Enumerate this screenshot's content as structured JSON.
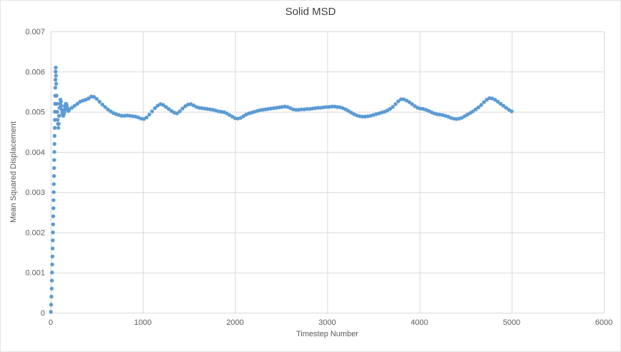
{
  "chart_data": {
    "type": "scatter",
    "title": "Solid MSD",
    "xlabel": "Timestep Number",
    "ylabel": "Mean Squared Displacement",
    "xlim": [
      0,
      6000
    ],
    "ylim": [
      0,
      0.007
    ],
    "x_ticks": [
      0,
      1000,
      2000,
      3000,
      4000,
      5000,
      6000
    ],
    "y_ticks": [
      0,
      0.001,
      0.002,
      0.003,
      0.004,
      0.005,
      0.006,
      0.007
    ],
    "grid": true,
    "legend": false,
    "marker_color": "#5B9BD5",
    "gridline_color": "#D9D9D9",
    "series": [
      {
        "name": "MSD",
        "points": [
          [
            2,
            2e-05
          ],
          [
            5,
            0.0002
          ],
          [
            8,
            0.0004
          ],
          [
            11,
            0.0006
          ],
          [
            13,
            0.0008
          ],
          [
            15,
            0.001
          ],
          [
            17,
            0.0012
          ],
          [
            19,
            0.0014
          ],
          [
            21,
            0.0016
          ],
          [
            23,
            0.0018
          ],
          [
            25,
            0.002
          ],
          [
            27,
            0.0022
          ],
          [
            28,
            0.0024
          ],
          [
            30,
            0.0026
          ],
          [
            31,
            0.0028
          ],
          [
            33,
            0.003
          ],
          [
            34,
            0.0032
          ],
          [
            36,
            0.0034
          ],
          [
            37,
            0.0036
          ],
          [
            38,
            0.0038
          ],
          [
            40,
            0.004
          ],
          [
            41,
            0.0042
          ],
          [
            42,
            0.0044
          ],
          [
            44,
            0.0046
          ],
          [
            45,
            0.0048
          ],
          [
            46,
            0.005
          ],
          [
            48,
            0.0052
          ],
          [
            49,
            0.0054
          ],
          [
            50,
            0.0056
          ],
          [
            52,
            0.0058
          ],
          [
            53,
            0.006
          ],
          [
            55,
            0.0061
          ],
          [
            57,
            0.0059
          ],
          [
            60,
            0.0057
          ],
          [
            63,
            0.0054
          ],
          [
            67,
            0.0052
          ],
          [
            71,
            0.005
          ],
          [
            75,
            0.0048
          ],
          [
            79,
            0.0047
          ],
          [
            83,
            0.0046
          ],
          [
            87,
            0.0047
          ],
          [
            91,
            0.0049
          ],
          [
            96,
            0.0051
          ],
          [
            101,
            0.0052
          ],
          [
            106,
            0.0053
          ],
          [
            111,
            0.00525
          ],
          [
            116,
            0.00515
          ],
          [
            121,
            0.00505
          ],
          [
            126,
            0.00497
          ],
          [
            131,
            0.00492
          ],
          [
            136,
            0.0049
          ],
          [
            141,
            0.00493
          ],
          [
            146,
            0.00498
          ],
          [
            151,
            0.00505
          ],
          [
            156,
            0.00512
          ],
          [
            161,
            0.00517
          ],
          [
            166,
            0.0052
          ],
          [
            171,
            0.00518
          ],
          [
            176,
            0.00513
          ],
          [
            181,
            0.00508
          ],
          [
            186,
            0.00504
          ],
          [
            191,
            0.00502
          ],
          [
            196,
            0.00503
          ],
          [
            200,
            0.00506
          ],
          [
            230,
            0.0051
          ],
          [
            260,
            0.00515
          ],
          [
            290,
            0.0052
          ],
          [
            320,
            0.00525
          ],
          [
            350,
            0.00528
          ],
          [
            380,
            0.0053
          ],
          [
            410,
            0.00533
          ],
          [
            440,
            0.00538
          ],
          [
            470,
            0.00537
          ],
          [
            500,
            0.00532
          ],
          [
            530,
            0.00525
          ],
          [
            560,
            0.00518
          ],
          [
            590,
            0.00512
          ],
          [
            620,
            0.00506
          ],
          [
            650,
            0.00501
          ],
          [
            680,
            0.00497
          ],
          [
            710,
            0.00494
          ],
          [
            740,
            0.00492
          ],
          [
            770,
            0.0049
          ],
          [
            800,
            0.0049
          ],
          [
            830,
            0.00491
          ],
          [
            860,
            0.0049
          ],
          [
            890,
            0.00489
          ],
          [
            920,
            0.00488
          ],
          [
            950,
            0.00486
          ],
          [
            980,
            0.00483
          ],
          [
            1010,
            0.00482
          ],
          [
            1040,
            0.00486
          ],
          [
            1070,
            0.00493
          ],
          [
            1100,
            0.00501
          ],
          [
            1130,
            0.00509
          ],
          [
            1160,
            0.00515
          ],
          [
            1190,
            0.00519
          ],
          [
            1220,
            0.00517
          ],
          [
            1250,
            0.00512
          ],
          [
            1280,
            0.00507
          ],
          [
            1310,
            0.00502
          ],
          [
            1340,
            0.00498
          ],
          [
            1370,
            0.00496
          ],
          [
            1400,
            0.00501
          ],
          [
            1430,
            0.00508
          ],
          [
            1460,
            0.00514
          ],
          [
            1490,
            0.00518
          ],
          [
            1520,
            0.00519
          ],
          [
            1550,
            0.00516
          ],
          [
            1580,
            0.00512
          ],
          [
            1610,
            0.0051
          ],
          [
            1640,
            0.00509
          ],
          [
            1670,
            0.00508
          ],
          [
            1700,
            0.00507
          ],
          [
            1730,
            0.00506
          ],
          [
            1760,
            0.00505
          ],
          [
            1790,
            0.00503
          ],
          [
            1820,
            0.00501
          ],
          [
            1850,
            0.005
          ],
          [
            1880,
            0.00499
          ],
          [
            1910,
            0.00496
          ],
          [
            1940,
            0.00492
          ],
          [
            1970,
            0.00488
          ],
          [
            2000,
            0.00484
          ],
          [
            2030,
            0.00483
          ],
          [
            2060,
            0.00485
          ],
          [
            2090,
            0.00489
          ],
          [
            2120,
            0.00493
          ],
          [
            2150,
            0.00496
          ],
          [
            2180,
            0.00498
          ],
          [
            2210,
            0.005
          ],
          [
            2240,
            0.00502
          ],
          [
            2270,
            0.00504
          ],
          [
            2300,
            0.00505
          ],
          [
            2330,
            0.00506
          ],
          [
            2360,
            0.00507
          ],
          [
            2390,
            0.00508
          ],
          [
            2420,
            0.00509
          ],
          [
            2450,
            0.0051
          ],
          [
            2480,
            0.00511
          ],
          [
            2510,
            0.00512
          ],
          [
            2540,
            0.00513
          ],
          [
            2570,
            0.00512
          ],
          [
            2600,
            0.00509
          ],
          [
            2630,
            0.00506
          ],
          [
            2660,
            0.00505
          ],
          [
            2690,
            0.00505
          ],
          [
            2720,
            0.00506
          ],
          [
            2750,
            0.00506
          ],
          [
            2780,
            0.00507
          ],
          [
            2810,
            0.00507
          ],
          [
            2840,
            0.00508
          ],
          [
            2870,
            0.00509
          ],
          [
            2900,
            0.0051
          ],
          [
            2930,
            0.0051
          ],
          [
            2960,
            0.00511
          ],
          [
            2990,
            0.00512
          ],
          [
            3020,
            0.00512
          ],
          [
            3050,
            0.00513
          ],
          [
            3080,
            0.00513
          ],
          [
            3110,
            0.00512
          ],
          [
            3140,
            0.00511
          ],
          [
            3170,
            0.00509
          ],
          [
            3200,
            0.00506
          ],
          [
            3230,
            0.00502
          ],
          [
            3260,
            0.00498
          ],
          [
            3290,
            0.00494
          ],
          [
            3320,
            0.00491
          ],
          [
            3350,
            0.00489
          ],
          [
            3380,
            0.00488
          ],
          [
            3410,
            0.00488
          ],
          [
            3440,
            0.00489
          ],
          [
            3470,
            0.0049
          ],
          [
            3500,
            0.00492
          ],
          [
            3530,
            0.00494
          ],
          [
            3560,
            0.00496
          ],
          [
            3590,
            0.00498
          ],
          [
            3620,
            0.005
          ],
          [
            3650,
            0.00503
          ],
          [
            3680,
            0.00507
          ],
          [
            3710,
            0.00512
          ],
          [
            3740,
            0.00519
          ],
          [
            3770,
            0.00526
          ],
          [
            3800,
            0.00531
          ],
          [
            3830,
            0.00531
          ],
          [
            3860,
            0.00528
          ],
          [
            3890,
            0.00524
          ],
          [
            3920,
            0.00519
          ],
          [
            3950,
            0.00514
          ],
          [
            3980,
            0.0051
          ],
          [
            4010,
            0.00508
          ],
          [
            4040,
            0.00507
          ],
          [
            4070,
            0.00505
          ],
          [
            4100,
            0.00502
          ],
          [
            4130,
            0.00499
          ],
          [
            4160,
            0.00496
          ],
          [
            4190,
            0.00494
          ],
          [
            4220,
            0.00493
          ],
          [
            4250,
            0.00492
          ],
          [
            4280,
            0.0049
          ],
          [
            4310,
            0.00488
          ],
          [
            4340,
            0.00485
          ],
          [
            4370,
            0.00483
          ],
          [
            4400,
            0.00482
          ],
          [
            4430,
            0.00483
          ],
          [
            4460,
            0.00485
          ],
          [
            4490,
            0.00489
          ],
          [
            4520,
            0.00493
          ],
          [
            4550,
            0.00497
          ],
          [
            4580,
            0.00501
          ],
          [
            4610,
            0.00506
          ],
          [
            4640,
            0.00511
          ],
          [
            4670,
            0.00517
          ],
          [
            4700,
            0.00524
          ],
          [
            4730,
            0.0053
          ],
          [
            4760,
            0.00534
          ],
          [
            4790,
            0.00533
          ],
          [
            4820,
            0.0053
          ],
          [
            4850,
            0.00525
          ],
          [
            4880,
            0.0052
          ],
          [
            4910,
            0.00515
          ],
          [
            4940,
            0.0051
          ],
          [
            4970,
            0.00505
          ],
          [
            5000,
            0.00501
          ]
        ]
      }
    ]
  }
}
